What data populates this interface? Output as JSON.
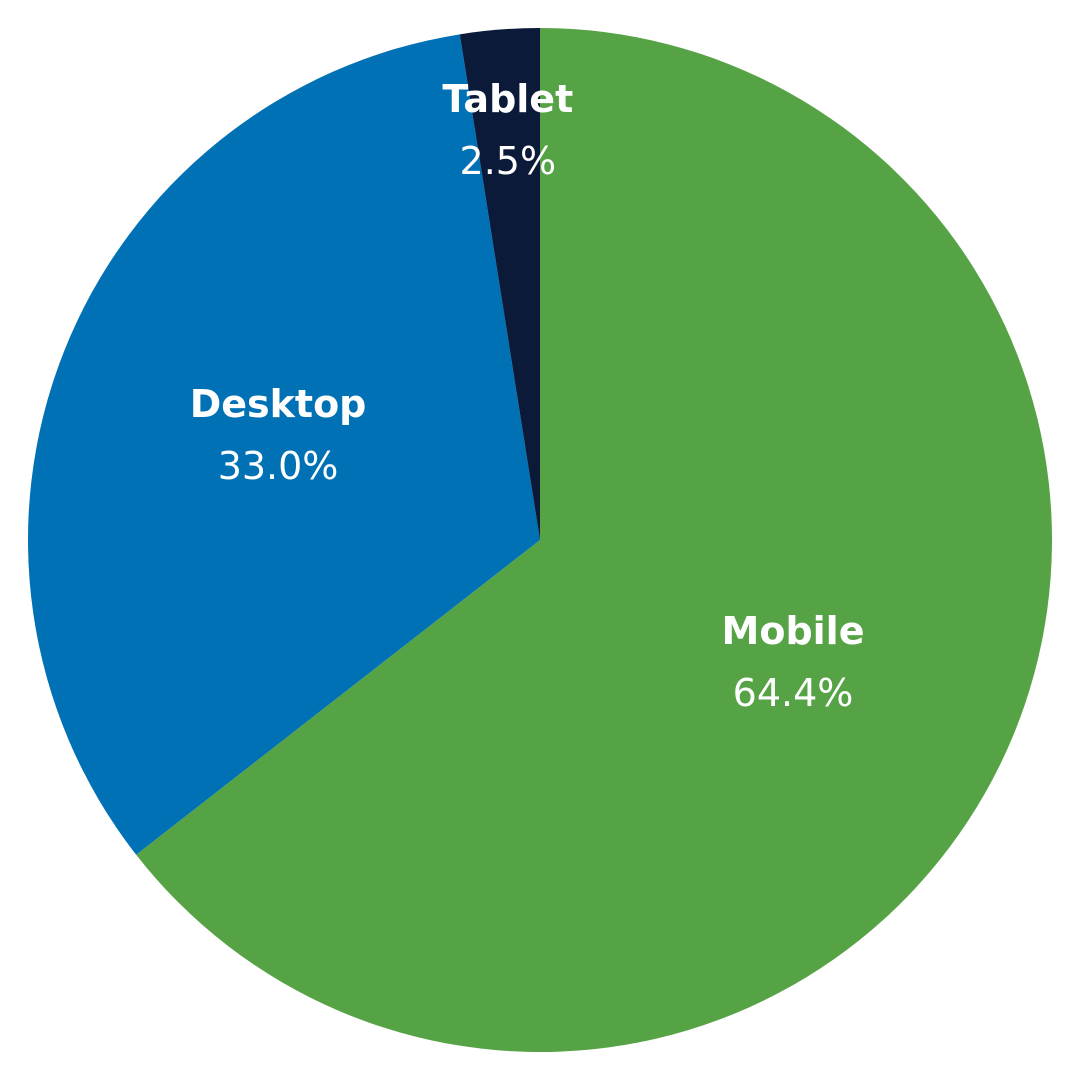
{
  "chart_data": {
    "type": "pie",
    "categories": [
      "Mobile",
      "Desktop",
      "Tablet"
    ],
    "values": [
      64.4,
      33.0,
      2.5
    ],
    "value_labels": [
      "64.4%",
      "33.0%",
      "2.5%"
    ],
    "colors": [
      "#56a346",
      "#0071b5",
      "#0b1a38"
    ]
  }
}
